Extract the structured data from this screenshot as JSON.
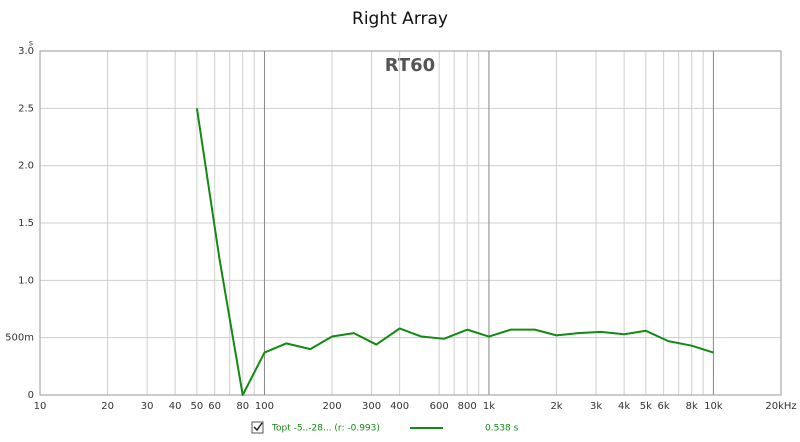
{
  "chart_data": {
    "type": "line",
    "title": "Right Array",
    "annotation": "RT60",
    "y_unit": "s",
    "x": [
      50,
      63,
      80,
      100,
      125,
      160,
      200,
      250,
      315,
      400,
      500,
      630,
      800,
      1000,
      1250,
      1600,
      2000,
      2500,
      3150,
      4000,
      5000,
      6300,
      8000,
      10000
    ],
    "series": [
      {
        "name": "Topt -5..-28... (r: -0.993)",
        "color": "#138a13",
        "values": [
          2.5,
          1.19,
          0.0,
          0.37,
          0.45,
          0.4,
          0.51,
          0.54,
          0.44,
          0.58,
          0.51,
          0.49,
          0.57,
          0.51,
          0.57,
          0.57,
          0.52,
          0.54,
          0.55,
          0.53,
          0.56,
          0.47,
          0.43,
          0.37
        ]
      }
    ],
    "legend_value": "0.538 s",
    "xscale": "log",
    "xlim": [
      10,
      20000
    ],
    "xticks": [
      10,
      20,
      30,
      40,
      50,
      60,
      80,
      100,
      200,
      300,
      400,
      600,
      800,
      {
        "value": 1000,
        "label": "1k"
      },
      {
        "value": 2000,
        "label": "2k"
      },
      {
        "value": 3000,
        "label": "3k"
      },
      {
        "value": 4000,
        "label": "4k"
      },
      {
        "value": 5000,
        "label": "5k"
      },
      {
        "value": 6000,
        "label": "6k"
      },
      {
        "value": 8000,
        "label": "8k"
      },
      {
        "value": 10000,
        "label": "10k"
      },
      {
        "value": 20000,
        "label": "20kHz"
      }
    ],
    "xmajorticks": [
      100,
      1000,
      10000
    ],
    "xminorticks": [
      70,
      90,
      700,
      900,
      7000,
      9000
    ],
    "ylim": [
      0,
      3
    ],
    "yticks": [
      0,
      {
        "value": 0.5,
        "label": "500m"
      },
      {
        "value": 1,
        "label": "1.0"
      },
      1.5,
      {
        "value": 2,
        "label": "2.0"
      },
      2.5,
      {
        "value": 3,
        "label": "3.0"
      }
    ],
    "grid": true
  }
}
